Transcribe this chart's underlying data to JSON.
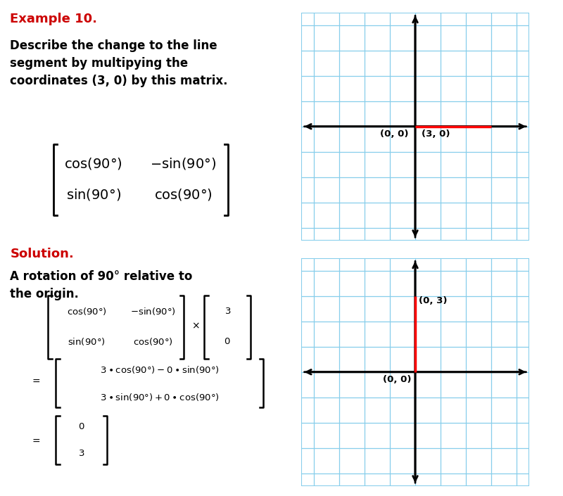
{
  "bg_color": "#ffffff",
  "red_color": "#cc0000",
  "black_color": "#000000",
  "grid_color": "#87ceeb",
  "example_title": "Example 10.",
  "problem_line1": "Describe the change to the line",
  "problem_line2": "segment by multipying the",
  "problem_line3": "coordinates (3, 0) by this matrix.",
  "solution_title": "Solution.",
  "solution_line1": "A rotation of 90° relative to",
  "solution_line2": "the origin.",
  "graph1_label1": "(0, 0)",
  "graph1_label2": "(3, 0)",
  "graph2_label1": "(0, 0)",
  "graph2_label2": "(0, 3)"
}
